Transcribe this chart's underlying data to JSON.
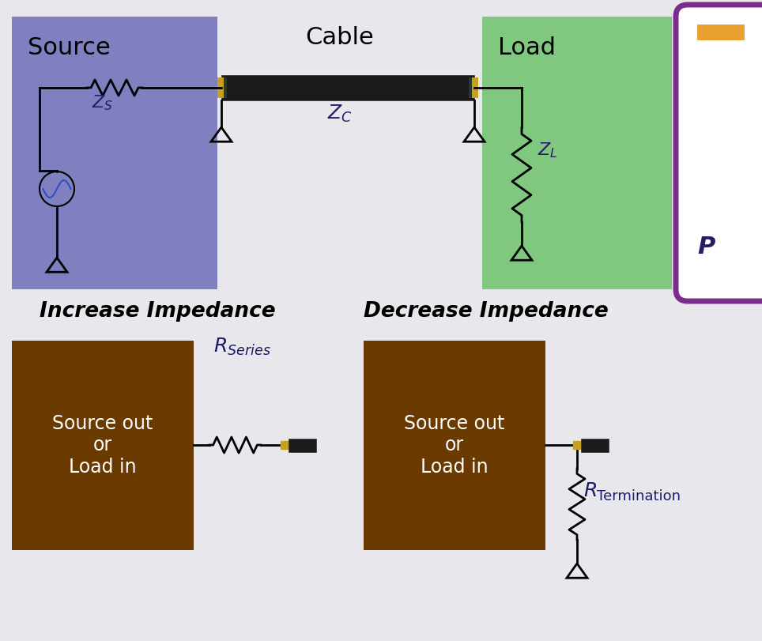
{
  "bg_color": "#e8e8ec",
  "source_box_color": "#8080c0",
  "load_box_color": "#80c880",
  "brown_box_color": "#6b3a00",
  "purple_border_color": "#7b2d8b",
  "cable_color": "#1a1a1a",
  "gold_color": "#c8a020",
  "title_source": "Source",
  "title_load": "Load",
  "title_cable": "Cable",
  "label_zs": "$Z_S$",
  "label_zc": "$Z_C$",
  "label_zl": "$Z_L$",
  "label_increase": "Increase Impedance",
  "label_decrease": "Decrease Impedance",
  "label_source_out": "Source out\nor\nLoad in",
  "label_rseries": "$\\mathbf{\\mathit{R}}_{Series}$",
  "label_rterm": "$\\mathbf{\\mathit{R}}$",
  "label_termination": "Termination"
}
